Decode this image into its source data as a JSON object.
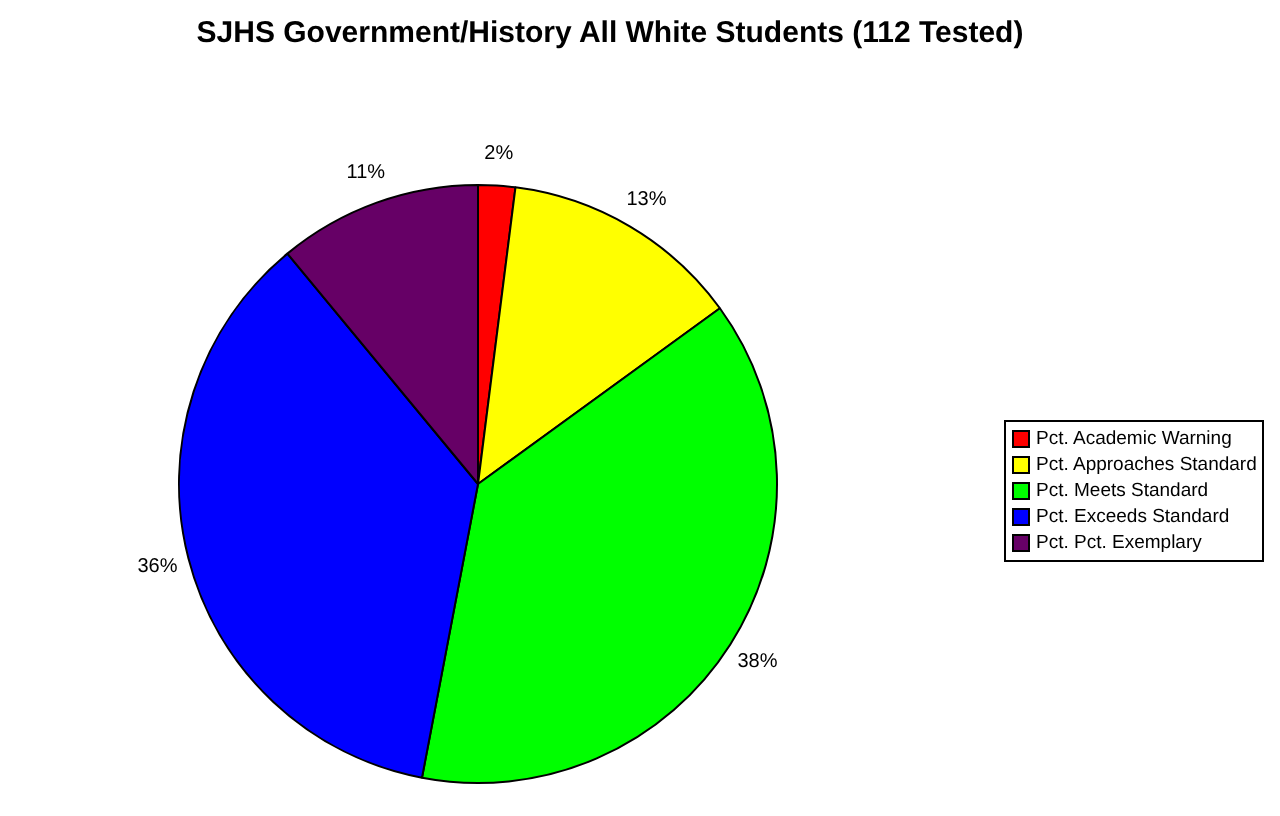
{
  "chart_data": {
    "type": "pie",
    "title": "SJHS Government/History All White Students (112 Tested)",
    "categories": [
      "Pct. Academic Warning",
      "Pct. Approaches Standard",
      "Pct. Meets Standard",
      "Pct. Exceeds Standard",
      "Pct. Pct. Exemplary"
    ],
    "values": [
      2,
      13,
      38,
      36,
      11
    ],
    "colors": [
      "#ff0000",
      "#ffff00",
      "#00ff00",
      "#0000ff",
      "#660066"
    ],
    "value_labels": [
      "2%",
      "13%",
      "38%",
      "36%",
      "11%"
    ],
    "legend": "right"
  }
}
